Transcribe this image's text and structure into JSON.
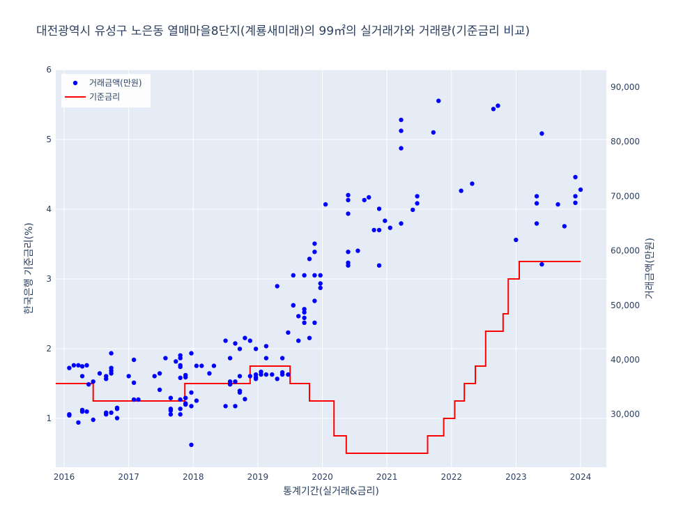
{
  "chart_data": {
    "type": "line+scatter",
    "title": "대전광역시 유성구 노은동 열매마을8단지(계룡새미래)의 99㎡의 실거래가와 거래량(기준금리 비교)",
    "xlabel": "통계기간(실거래&금리)",
    "ylabel_left": "한국은행 기준금리(%)",
    "ylabel_right": "거래금액(만원)",
    "x_ticks": [
      "2016",
      "2017",
      "2018",
      "2019",
      "2020",
      "2021",
      "2022",
      "2023",
      "2024"
    ],
    "y_left_ticks": [
      "1",
      "2",
      "3",
      "4",
      "5",
      "6"
    ],
    "y_right_ticks": [
      "30,000",
      "40,000",
      "50,000",
      "60,000",
      "70,000",
      "80,000",
      "90,000"
    ],
    "x_range": [
      2015.87,
      2024.4
    ],
    "y_left_range": [
      0.3,
      6.0
    ],
    "y_right_range": [
      20300,
      93200
    ],
    "grid": true,
    "legend_position": "top-left",
    "colors": {
      "plot_bg": "#e5ecf6",
      "grid": "#ffffff",
      "scatter": "#0000ff",
      "rate_line": "#ff0000",
      "text": "#2a3f5f"
    },
    "series": [
      {
        "name": "거래금액(만원)",
        "type": "scatter",
        "axis": "right",
        "points": [
          [
            2016.08,
            38500
          ],
          [
            2016.08,
            30000
          ],
          [
            2016.08,
            29800
          ],
          [
            2016.15,
            39000
          ],
          [
            2016.22,
            39000
          ],
          [
            2016.22,
            28500
          ],
          [
            2016.28,
            38800
          ],
          [
            2016.28,
            37000
          ],
          [
            2016.28,
            30500
          ],
          [
            2016.28,
            30800
          ],
          [
            2016.35,
            39000
          ],
          [
            2016.35,
            30500
          ],
          [
            2016.38,
            35500
          ],
          [
            2016.45,
            36000
          ],
          [
            2016.45,
            29000
          ],
          [
            2016.55,
            37500
          ],
          [
            2016.65,
            37000
          ],
          [
            2016.65,
            36500
          ],
          [
            2016.65,
            30000
          ],
          [
            2016.65,
            30300
          ],
          [
            2016.73,
            38500
          ],
          [
            2016.73,
            38000
          ],
          [
            2016.73,
            37500
          ],
          [
            2016.73,
            30300
          ],
          [
            2016.73,
            41200
          ],
          [
            2016.82,
            31000
          ],
          [
            2016.82,
            29300
          ],
          [
            2016.82,
            31200
          ],
          [
            2017.0,
            37000
          ],
          [
            2017.08,
            40000
          ],
          [
            2017.08,
            35800
          ],
          [
            2017.08,
            32700
          ],
          [
            2017.15,
            32700
          ],
          [
            2017.4,
            37000
          ],
          [
            2017.48,
            37500
          ],
          [
            2017.48,
            34500
          ],
          [
            2017.57,
            40300
          ],
          [
            2017.65,
            33000
          ],
          [
            2017.65,
            31000
          ],
          [
            2017.65,
            30000
          ],
          [
            2017.65,
            30700
          ],
          [
            2017.73,
            39700
          ],
          [
            2017.8,
            39000
          ],
          [
            2017.8,
            40300
          ],
          [
            2017.8,
            40800
          ],
          [
            2017.8,
            38700
          ],
          [
            2017.8,
            36700
          ],
          [
            2017.8,
            32700
          ],
          [
            2017.8,
            31000
          ],
          [
            2017.8,
            30000
          ],
          [
            2017.88,
            31800
          ],
          [
            2017.88,
            32000
          ],
          [
            2017.88,
            36800
          ],
          [
            2017.88,
            37200
          ],
          [
            2017.88,
            33000
          ],
          [
            2017.97,
            41200
          ],
          [
            2017.97,
            34000
          ],
          [
            2017.97,
            31500
          ],
          [
            2017.97,
            24400
          ],
          [
            2018.05,
            38900
          ],
          [
            2018.05,
            32500
          ],
          [
            2018.13,
            38900
          ],
          [
            2018.25,
            37500
          ],
          [
            2018.32,
            38900
          ],
          [
            2018.5,
            43500
          ],
          [
            2018.5,
            31500
          ],
          [
            2018.57,
            40300
          ],
          [
            2018.57,
            36000
          ],
          [
            2018.57,
            35500
          ],
          [
            2018.65,
            43000
          ],
          [
            2018.65,
            36000
          ],
          [
            2018.65,
            31500
          ],
          [
            2018.72,
            42000
          ],
          [
            2018.72,
            37000
          ],
          [
            2018.72,
            34000
          ],
          [
            2018.72,
            34300
          ],
          [
            2018.8,
            44000
          ],
          [
            2018.8,
            32800
          ],
          [
            2018.88,
            43500
          ],
          [
            2018.88,
            37000
          ],
          [
            2018.97,
            42000
          ],
          [
            2018.97,
            37300
          ],
          [
            2018.97,
            36500
          ],
          [
            2018.97,
            36800
          ],
          [
            2019.05,
            37300
          ],
          [
            2019.05,
            37800
          ],
          [
            2019.13,
            42500
          ],
          [
            2019.13,
            40300
          ],
          [
            2019.13,
            37300
          ],
          [
            2019.22,
            37300
          ],
          [
            2019.3,
            36500
          ],
          [
            2019.3,
            53500
          ],
          [
            2019.38,
            40300
          ],
          [
            2019.38,
            37700
          ],
          [
            2019.38,
            37300
          ],
          [
            2019.47,
            45000
          ],
          [
            2019.47,
            37300
          ],
          [
            2019.55,
            55500
          ],
          [
            2019.55,
            50000
          ],
          [
            2019.55,
            50000
          ],
          [
            2019.63,
            48000
          ],
          [
            2019.63,
            43500
          ],
          [
            2019.72,
            49300
          ],
          [
            2019.72,
            48700
          ],
          [
            2019.72,
            46800
          ],
          [
            2019.72,
            55500
          ],
          [
            2019.72,
            47700
          ],
          [
            2019.8,
            44000
          ],
          [
            2019.8,
            58500
          ],
          [
            2019.88,
            59800
          ],
          [
            2019.88,
            61300
          ],
          [
            2019.88,
            55500
          ],
          [
            2019.88,
            50800
          ],
          [
            2019.88,
            46800
          ],
          [
            2019.97,
            55500
          ],
          [
            2019.97,
            54000
          ],
          [
            2019.97,
            53200
          ],
          [
            2020.05,
            68500
          ],
          [
            2020.4,
            70200
          ],
          [
            2020.4,
            69300
          ],
          [
            2020.4,
            66800
          ],
          [
            2020.4,
            59800
          ],
          [
            2020.4,
            57800
          ],
          [
            2020.4,
            57300
          ],
          [
            2020.55,
            60000
          ],
          [
            2020.65,
            69300
          ],
          [
            2020.72,
            69800
          ],
          [
            2020.8,
            63800
          ],
          [
            2020.88,
            63800
          ],
          [
            2020.88,
            67700
          ],
          [
            2020.88,
            57300
          ],
          [
            2020.97,
            65500
          ],
          [
            2021.05,
            64200
          ],
          [
            2021.22,
            84000
          ],
          [
            2021.22,
            82000
          ],
          [
            2021.22,
            78800
          ],
          [
            2021.22,
            65000
          ],
          [
            2021.4,
            67500
          ],
          [
            2021.47,
            70000
          ],
          [
            2021.47,
            68700
          ],
          [
            2021.72,
            81700
          ],
          [
            2021.8,
            87500
          ],
          [
            2022.15,
            71000
          ],
          [
            2022.32,
            72300
          ],
          [
            2022.65,
            86000
          ],
          [
            2022.72,
            86600
          ],
          [
            2023.0,
            62000
          ],
          [
            2023.32,
            68700
          ],
          [
            2023.32,
            70000
          ],
          [
            2023.32,
            65000
          ],
          [
            2023.4,
            81500
          ],
          [
            2023.4,
            57500
          ],
          [
            2023.65,
            68500
          ],
          [
            2023.75,
            64500
          ],
          [
            2023.92,
            73500
          ],
          [
            2023.92,
            70000
          ],
          [
            2023.92,
            68800
          ],
          [
            2024.0,
            71200
          ]
        ]
      },
      {
        "name": "기준금리",
        "type": "line",
        "axis": "left",
        "step_points": [
          [
            2015.87,
            1.5
          ],
          [
            2016.45,
            1.5
          ],
          [
            2016.45,
            1.25
          ],
          [
            2017.87,
            1.25
          ],
          [
            2017.87,
            1.5
          ],
          [
            2018.88,
            1.5
          ],
          [
            2018.88,
            1.75
          ],
          [
            2019.5,
            1.75
          ],
          [
            2019.5,
            1.5
          ],
          [
            2019.8,
            1.5
          ],
          [
            2019.8,
            1.25
          ],
          [
            2020.18,
            1.25
          ],
          [
            2020.18,
            0.75
          ],
          [
            2020.37,
            0.75
          ],
          [
            2020.37,
            0.5
          ],
          [
            2021.63,
            0.5
          ],
          [
            2021.63,
            0.75
          ],
          [
            2021.88,
            0.75
          ],
          [
            2021.88,
            1.0
          ],
          [
            2022.05,
            1.0
          ],
          [
            2022.05,
            1.25
          ],
          [
            2022.2,
            1.25
          ],
          [
            2022.2,
            1.5
          ],
          [
            2022.37,
            1.5
          ],
          [
            2022.37,
            1.75
          ],
          [
            2022.53,
            1.75
          ],
          [
            2022.53,
            2.25
          ],
          [
            2022.8,
            2.25
          ],
          [
            2022.8,
            2.5
          ],
          [
            2022.88,
            2.5
          ],
          [
            2022.88,
            3.0
          ],
          [
            2023.05,
            3.0
          ],
          [
            2023.05,
            3.25
          ],
          [
            2024.0,
            3.25
          ]
        ]
      }
    ]
  }
}
